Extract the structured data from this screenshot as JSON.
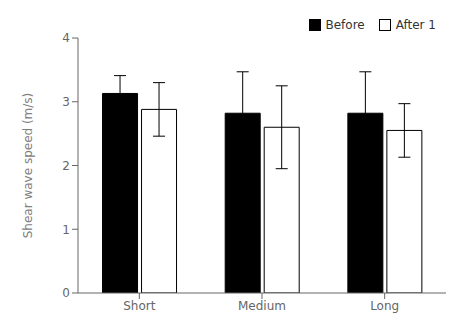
{
  "chart_data": {
    "type": "bar",
    "categories": [
      "Short",
      "Medium",
      "Long"
    ],
    "series": [
      {
        "name": "Before",
        "color": "#000000",
        "values": [
          3.13,
          2.82,
          2.82
        ],
        "errors": [
          0.28,
          0.65,
          0.65
        ]
      },
      {
        "name": "After 1",
        "color": "#ffffff",
        "values": [
          2.88,
          2.6,
          2.55
        ],
        "errors": [
          0.42,
          0.65,
          0.42
        ]
      }
    ],
    "ylabel": "Shear wave speed (m/s)",
    "ylim": [
      0,
      4
    ],
    "yticks": [
      0,
      1,
      2,
      3,
      4
    ],
    "legend": "upper right",
    "grid": false
  }
}
